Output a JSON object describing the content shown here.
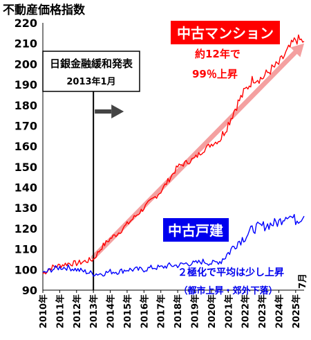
{
  "chart_data": {
    "type": "line",
    "title": "不動産価格指数",
    "ylim": [
      90,
      220
    ],
    "y_ticks": [
      90,
      100,
      110,
      120,
      130,
      140,
      150,
      160,
      170,
      180,
      190,
      200,
      210,
      220
    ],
    "x_range": [
      "2010-01",
      "2025-07"
    ],
    "x_ticks": [
      "2010年",
      "2011年",
      "2012年",
      "2013年",
      "2014年",
      "2015年",
      "2016年",
      "2017年",
      "2018年",
      "2019年",
      "2020年",
      "2021年",
      "2022年",
      "2023年",
      "2024年",
      "2025年"
    ],
    "x_end_label": "7月",
    "grid": false,
    "event": {
      "date": "2013-01",
      "label": "日銀金融緩和発表",
      "sublabel": "2013年1月"
    },
    "series": [
      {
        "name": "中古マンション",
        "color": "#ff0000",
        "points": [
          [
            "2010-01",
            98
          ],
          [
            "2010-07",
            101
          ],
          [
            "2011-01",
            102
          ],
          [
            "2011-07",
            103
          ],
          [
            "2012-01",
            103
          ],
          [
            "2012-07",
            104
          ],
          [
            "2013-01",
            105
          ],
          [
            "2013-07",
            111
          ],
          [
            "2014-01",
            115
          ],
          [
            "2014-07",
            118
          ],
          [
            "2015-01",
            122
          ],
          [
            "2015-07",
            126
          ],
          [
            "2016-01",
            130
          ],
          [
            "2016-07",
            134
          ],
          [
            "2017-01",
            138
          ],
          [
            "2017-07",
            144
          ],
          [
            "2018-01",
            150
          ],
          [
            "2018-07",
            152
          ],
          [
            "2019-01",
            154
          ],
          [
            "2019-07",
            158
          ],
          [
            "2020-01",
            161
          ],
          [
            "2020-07",
            163
          ],
          [
            "2021-01",
            171
          ],
          [
            "2021-07",
            180
          ],
          [
            "2022-01",
            187
          ],
          [
            "2022-07",
            193
          ],
          [
            "2023-01",
            193
          ],
          [
            "2023-07",
            197
          ],
          [
            "2024-01",
            200
          ],
          [
            "2024-07",
            206
          ],
          [
            "2025-01",
            212
          ],
          [
            "2025-07",
            211
          ]
        ],
        "annotation": {
          "title": "中古マンション",
          "line1": "約12年で",
          "line2": "99％上昇"
        }
      },
      {
        "name": "中古戸建",
        "color": "#0000ff",
        "points": [
          [
            "2010-01",
            98
          ],
          [
            "2010-07",
            100
          ],
          [
            "2011-01",
            101
          ],
          [
            "2011-07",
            101
          ],
          [
            "2012-01",
            100
          ],
          [
            "2012-07",
            99
          ],
          [
            "2013-01",
            98
          ],
          [
            "2013-07",
            98
          ],
          [
            "2014-01",
            99
          ],
          [
            "2014-07",
            99
          ],
          [
            "2015-01",
            100
          ],
          [
            "2015-07",
            100
          ],
          [
            "2016-01",
            100
          ],
          [
            "2016-07",
            101
          ],
          [
            "2017-01",
            101
          ],
          [
            "2017-07",
            102
          ],
          [
            "2018-01",
            102
          ],
          [
            "2018-07",
            103
          ],
          [
            "2019-01",
            103
          ],
          [
            "2019-07",
            104
          ],
          [
            "2020-01",
            103
          ],
          [
            "2020-07",
            104
          ],
          [
            "2021-01",
            108
          ],
          [
            "2021-07",
            113
          ],
          [
            "2022-01",
            116
          ],
          [
            "2022-07",
            120
          ],
          [
            "2023-01",
            121
          ],
          [
            "2023-07",
            122
          ],
          [
            "2024-01",
            123
          ],
          [
            "2024-07",
            127
          ],
          [
            "2025-01",
            124
          ],
          [
            "2025-07",
            126
          ]
        ],
        "annotation": {
          "title": "中古戸建",
          "line1": "２極化で平均は少し上昇",
          "line2": "（都市上昇・郊外下落）"
        }
      }
    ],
    "trend_line": {
      "color": "#f4a0a0",
      "from": [
        "2013-01",
        106
      ],
      "to": [
        "2025-07",
        210
      ]
    }
  }
}
